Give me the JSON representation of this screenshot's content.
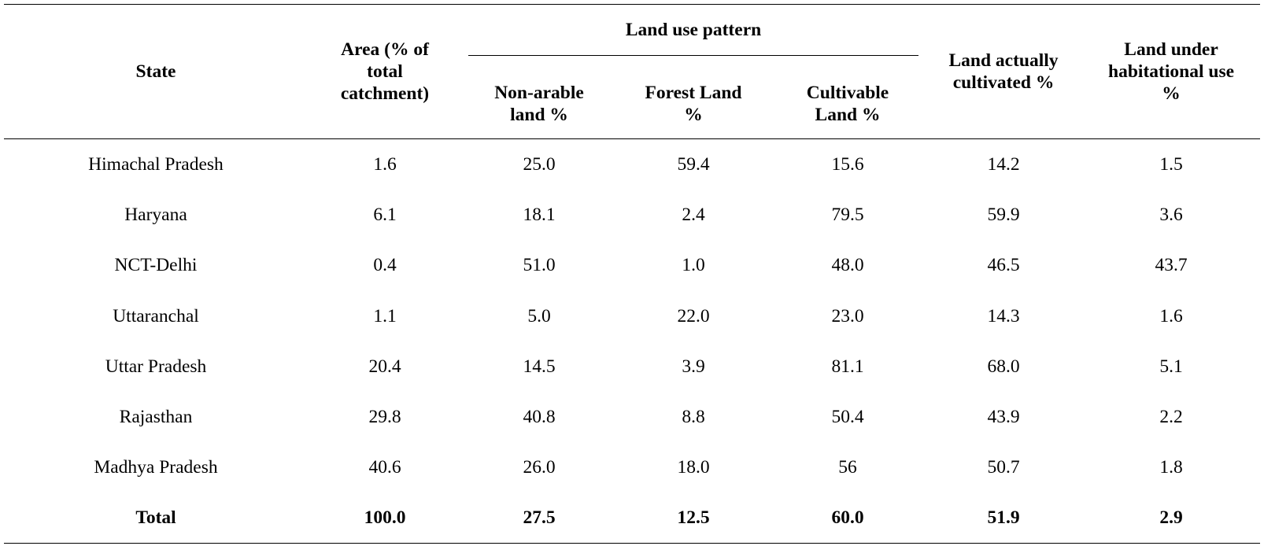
{
  "headers": {
    "state": "State",
    "area": "Area (% of total catchment)",
    "land_use_group": "Land use pattern",
    "non_arable": "Non-arable land %",
    "forest": "Forest Land %",
    "cultivable": "Cultivable Land %",
    "actually_cultivated": "Land actually cultivated %",
    "habitational": "Land under habitational use %"
  },
  "rows": [
    {
      "state": "Himachal Pradesh",
      "area": "1.6",
      "non_arable": "25.0",
      "forest": "59.4",
      "cultivable": "15.6",
      "actually_cultivated": "14.2",
      "habitational": "1.5"
    },
    {
      "state": "Haryana",
      "area": "6.1",
      "non_arable": "18.1",
      "forest": "2.4",
      "cultivable": "79.5",
      "actually_cultivated": "59.9",
      "habitational": "3.6"
    },
    {
      "state": "NCT-Delhi",
      "area": "0.4",
      "non_arable": "51.0",
      "forest": "1.0",
      "cultivable": "48.0",
      "actually_cultivated": "46.5",
      "habitational": "43.7"
    },
    {
      "state": "Uttaranchal",
      "area": "1.1",
      "non_arable": "5.0",
      "forest": "22.0",
      "cultivable": "23.0",
      "actually_cultivated": "14.3",
      "habitational": "1.6"
    },
    {
      "state": "Uttar Pradesh",
      "area": "20.4",
      "non_arable": "14.5",
      "forest": "3.9",
      "cultivable": "81.1",
      "actually_cultivated": "68.0",
      "habitational": "5.1"
    },
    {
      "state": "Rajasthan",
      "area": "29.8",
      "non_arable": "40.8",
      "forest": "8.8",
      "cultivable": "50.4",
      "actually_cultivated": "43.9",
      "habitational": "2.2"
    },
    {
      "state": "Madhya Pradesh",
      "area": "40.6",
      "non_arable": "26.0",
      "forest": "18.0",
      "cultivable": "56",
      "actually_cultivated": "50.7",
      "habitational": "1.8"
    }
  ],
  "total": {
    "state": "Total",
    "area": "100.0",
    "non_arable": "27.5",
    "forest": "12.5",
    "cultivable": "60.0",
    "actually_cultivated": "51.9",
    "habitational": "2.9"
  }
}
